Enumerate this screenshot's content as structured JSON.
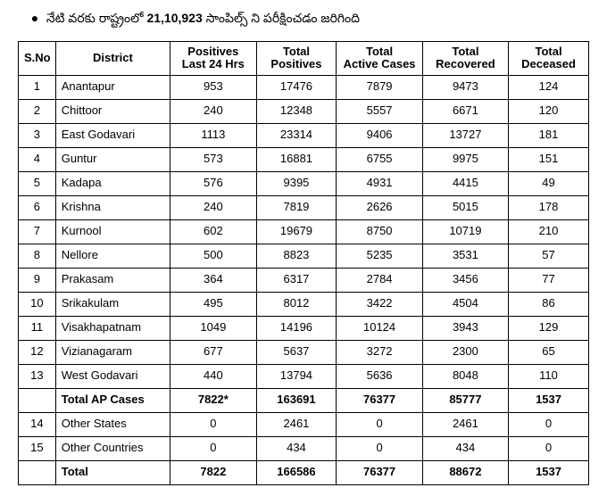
{
  "header": {
    "prefix": "నేటి వరకు రాష్ట్రంలో ",
    "bold": "21,10,923",
    "suffix": "  సాంపిల్స్ ని పరీక్షించడం జరిగింది"
  },
  "table": {
    "columns": [
      "S.No",
      "District",
      "Positives Last 24 Hrs",
      "Total Positives",
      "Total Active Cases",
      "Total Recovered",
      "Total Deceased"
    ],
    "rows": [
      {
        "sno": "1",
        "district": "Anantapur",
        "p24": "953",
        "totpos": "17476",
        "active": "7879",
        "recov": "9473",
        "dec": "124",
        "bold": false
      },
      {
        "sno": "2",
        "district": "Chittoor",
        "p24": "240",
        "totpos": "12348",
        "active": "5557",
        "recov": "6671",
        "dec": "120",
        "bold": false
      },
      {
        "sno": "3",
        "district": "East Godavari",
        "p24": "1113",
        "totpos": "23314",
        "active": "9406",
        "recov": "13727",
        "dec": "181",
        "bold": false
      },
      {
        "sno": "4",
        "district": "Guntur",
        "p24": "573",
        "totpos": "16881",
        "active": "6755",
        "recov": "9975",
        "dec": "151",
        "bold": false
      },
      {
        "sno": "5",
        "district": "Kadapa",
        "p24": "576",
        "totpos": "9395",
        "active": "4931",
        "recov": "4415",
        "dec": "49",
        "bold": false
      },
      {
        "sno": "6",
        "district": "Krishna",
        "p24": "240",
        "totpos": "7819",
        "active": "2626",
        "recov": "5015",
        "dec": "178",
        "bold": false
      },
      {
        "sno": "7",
        "district": "Kurnool",
        "p24": "602",
        "totpos": "19679",
        "active": "8750",
        "recov": "10719",
        "dec": "210",
        "bold": false
      },
      {
        "sno": "8",
        "district": "Nellore",
        "p24": "500",
        "totpos": "8823",
        "active": "5235",
        "recov": "3531",
        "dec": "57",
        "bold": false
      },
      {
        "sno": "9",
        "district": "Prakasam",
        "p24": "364",
        "totpos": "6317",
        "active": "2784",
        "recov": "3456",
        "dec": "77",
        "bold": false
      },
      {
        "sno": "10",
        "district": "Srikakulam",
        "p24": "495",
        "totpos": "8012",
        "active": "3422",
        "recov": "4504",
        "dec": "86",
        "bold": false
      },
      {
        "sno": "11",
        "district": "Visakhapatnam",
        "p24": "1049",
        "totpos": "14196",
        "active": "10124",
        "recov": "3943",
        "dec": "129",
        "bold": false
      },
      {
        "sno": "12",
        "district": "Vizianagaram",
        "p24": "677",
        "totpos": "5637",
        "active": "3272",
        "recov": "2300",
        "dec": "65",
        "bold": false
      },
      {
        "sno": "13",
        "district": "West Godavari",
        "p24": "440",
        "totpos": "13794",
        "active": "5636",
        "recov": "8048",
        "dec": "110",
        "bold": false
      },
      {
        "sno": "",
        "district": "Total AP Cases",
        "p24": "7822*",
        "totpos": "163691",
        "active": "76377",
        "recov": "85777",
        "dec": "1537",
        "bold": true
      },
      {
        "sno": "14",
        "district": "Other States",
        "p24": "0",
        "totpos": "2461",
        "active": "0",
        "recov": "2461",
        "dec": "0",
        "bold": false
      },
      {
        "sno": "15",
        "district": "Other Countries",
        "p24": "0",
        "totpos": "434",
        "active": "0",
        "recov": "434",
        "dec": "0",
        "bold": false
      },
      {
        "sno": "",
        "district": "Total",
        "p24": "7822",
        "totpos": "166586",
        "active": "76377",
        "recov": "88672",
        "dec": "1537",
        "bold": true
      }
    ]
  }
}
